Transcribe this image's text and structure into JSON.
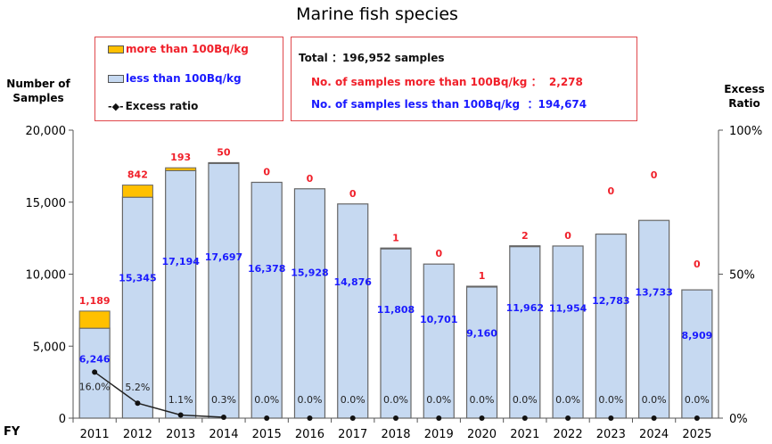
{
  "chart_data": {
    "type": "bar",
    "title": "Marine fish species",
    "ylabel": "Number of Samples",
    "y2label": "Excess Ratio",
    "xlabel": "FY",
    "ylim": [
      0,
      20000
    ],
    "y2lim": [
      0,
      100
    ],
    "yticks": [
      "0",
      "5,000",
      "10,000",
      "15,000",
      "20,000"
    ],
    "y2ticks": [
      "0%",
      "50%",
      "100%"
    ],
    "categories": [
      "2011",
      "2012",
      "2013",
      "2014",
      "2015",
      "2016",
      "2017",
      "2018",
      "2019",
      "2020",
      "2021",
      "2022",
      "2023",
      "2024",
      "2025"
    ],
    "series": [
      {
        "name": "less than 100Bq/kg",
        "color": "#c6d9f1",
        "values": [
          6246,
          15345,
          17194,
          17697,
          16378,
          15928,
          14876,
          11808,
          10701,
          9160,
          11962,
          11954,
          12783,
          13733,
          8909
        ],
        "labels": [
          "6,246",
          "15,345",
          "17,194",
          "17,697",
          "16,378",
          "15,928",
          "14,876",
          "11,808",
          "10,701",
          "9,160",
          "11,962",
          "11,954",
          "12,783",
          "13,733",
          "8,909"
        ]
      },
      {
        "name": "more than 100Bq/kg",
        "color": "#ffc000",
        "values": [
          1189,
          842,
          193,
          50,
          0,
          0,
          0,
          1,
          0,
          1,
          2,
          0,
          0,
          0,
          0
        ],
        "labels": [
          "1,189",
          "842",
          "193",
          "50",
          "0",
          "0",
          "0",
          "1",
          "0",
          "1",
          "2",
          "0",
          "0",
          "0",
          "0"
        ]
      },
      {
        "name": "Excess ratio",
        "type": "line",
        "axis": "right",
        "values": [
          16.0,
          5.2,
          1.1,
          0.3,
          0,
          0,
          0,
          0,
          0,
          0,
          0,
          0,
          0,
          0,
          0
        ],
        "labels": [
          "16.0%",
          "5.2%",
          "1.1%",
          "0.3%",
          "0.0%",
          "0.0%",
          "0.0%",
          "0.0%",
          "0.0%",
          "0.0%",
          "0.0%",
          "0.0%",
          "0.0%",
          "0.0%",
          "0.0%"
        ]
      }
    ],
    "legend": {
      "position": "top-left",
      "items": [
        "more than 100Bq/kg",
        "less than 100Bq/kg",
        "Excess ratio"
      ]
    },
    "summary": {
      "total": "Total ：196,952 samples",
      "more": "No. of samples more than 100Bq/kg ：  2,278",
      "less": "No. of samples less than 100Bq/kg  ：194,674"
    },
    "grid": false
  }
}
